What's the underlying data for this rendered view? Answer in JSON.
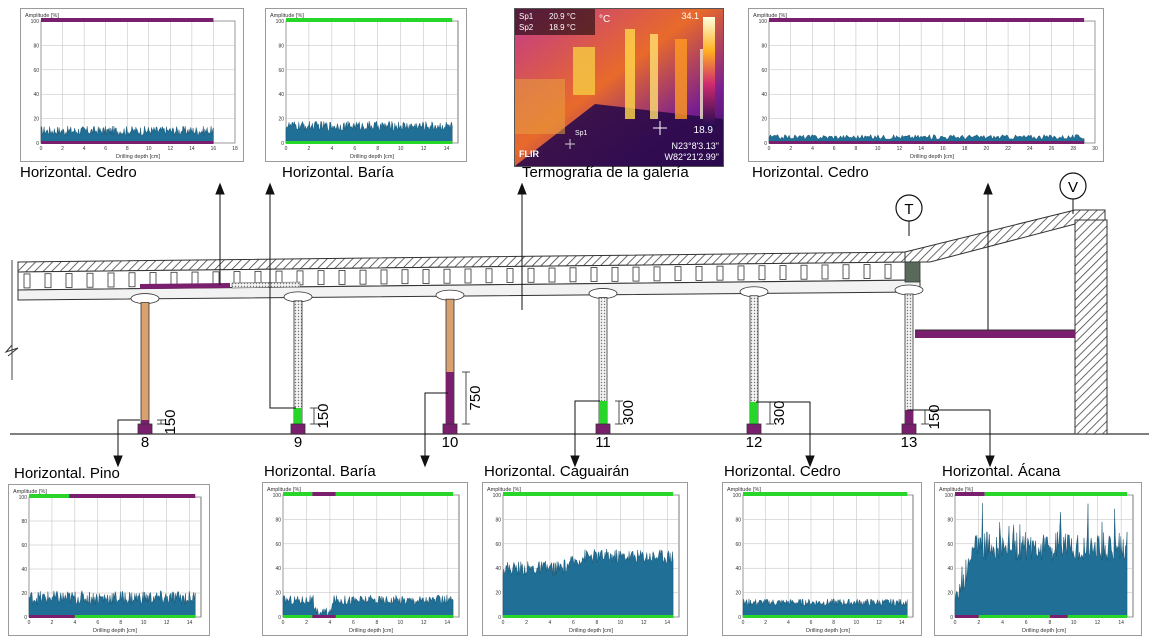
{
  "colors": {
    "signal": "#1f6f96",
    "sound": "#28d62a",
    "decay": "#7a1f6e",
    "wood": "#d9a070",
    "hatch": "#555555"
  },
  "captions": {
    "top_left": "Horizontal. Cedro",
    "top_baria": "Horizontal. Baría",
    "thermo": "Termografía de la galería",
    "top_right": "Horizontal. Cedro",
    "bot_pino": "Horizontal. Pino",
    "bot_baria": "Horizontal. Baría",
    "bot_caguairan": "Horizontal. Caguairán",
    "bot_cedro": "Horizontal. Cedro",
    "bot_acana": "Horizontal. Ácana"
  },
  "thermography": {
    "sp1_label": "Sp1",
    "sp1_value": "20.9 °C",
    "sp2_label": "Sp2",
    "sp2_value": "18.9 °C",
    "unit": "°C",
    "scale_max": "34.1",
    "scale_min": "18.9",
    "coord_n": "N23°8'3.13\"",
    "coord_w": "W82°21'2.99\"",
    "brand": "FLIR",
    "spot": "Sp1"
  },
  "structure": {
    "columns": [
      "8",
      "9",
      "10",
      "11",
      "12",
      "13"
    ],
    "dims": [
      "150",
      "150",
      "750",
      "300",
      "300",
      "150"
    ],
    "markers": [
      "T",
      "V"
    ]
  },
  "chart_data": [
    {
      "id": "top_left",
      "type": "area",
      "ylabel": "Amplitude [%]",
      "xlabel": "Drilling depth [cm]",
      "ylim": [
        0,
        100
      ],
      "xlim": [
        0,
        18
      ],
      "xticks": [
        "0",
        "2",
        "4",
        "6",
        "8",
        "10",
        "12",
        "14",
        "16",
        "18"
      ],
      "yticks": [
        "0",
        "20",
        "40",
        "60",
        "80",
        "100"
      ],
      "baseline": 10,
      "noise": 4,
      "end": 16,
      "bar_segments": [
        {
          "from": 0,
          "to": 16,
          "color": "decay"
        }
      ],
      "bottom_segments": [
        {
          "from": 0,
          "to": 16,
          "color": "decay"
        }
      ]
    },
    {
      "id": "top_baria",
      "type": "area",
      "ylabel": "Amplitude [%]",
      "xlabel": "Drilling depth [cm]",
      "ylim": [
        0,
        100
      ],
      "xlim": [
        0,
        15
      ],
      "xticks": [
        "0",
        "2",
        "4",
        "6",
        "8",
        "10",
        "12",
        "14"
      ],
      "yticks": [
        "0",
        "20",
        "40",
        "60",
        "80",
        "100"
      ],
      "baseline": 14,
      "noise": 4,
      "end": 14.5,
      "bar_segments": [
        {
          "from": 0,
          "to": 14.5,
          "color": "sound"
        }
      ],
      "bottom_segments": [
        {
          "from": 0,
          "to": 14.5,
          "color": "sound"
        }
      ]
    },
    {
      "id": "top_right",
      "type": "area",
      "ylabel": "Amplitude [%]",
      "xlabel": "Drilling depth [cm]",
      "ylim": [
        0,
        100
      ],
      "xlim": [
        0,
        30
      ],
      "xticks": [
        "0",
        "2",
        "4",
        "6",
        "8",
        "10",
        "12",
        "14",
        "16",
        "18",
        "20",
        "22",
        "24",
        "26",
        "28",
        "30"
      ],
      "yticks": [
        "0",
        "20",
        "40",
        "60",
        "80",
        "100"
      ],
      "baseline": 5,
      "noise": 2,
      "end": 29,
      "bar_segments": [
        {
          "from": 0,
          "to": 29,
          "color": "decay"
        }
      ],
      "bottom_segments": [
        {
          "from": 0,
          "to": 29,
          "color": "decay"
        }
      ]
    },
    {
      "id": "bot_pino",
      "type": "area",
      "ylabel": "Amplitude [%]",
      "xlabel": "Drilling depth [cm]",
      "ylim": [
        0,
        100
      ],
      "xlim": [
        0,
        15
      ],
      "xticks": [
        "0",
        "2",
        "4",
        "6",
        "8",
        "10",
        "12",
        "14"
      ],
      "yticks": [
        "0",
        "20",
        "40",
        "60",
        "80",
        "100"
      ],
      "baseline": 16,
      "noise": 6,
      "end": 14.5,
      "bar_segments": [
        {
          "from": 0,
          "to": 3.5,
          "color": "sound"
        },
        {
          "from": 3.5,
          "to": 14.5,
          "color": "decay"
        }
      ],
      "bottom_segments": [
        {
          "from": 0,
          "to": 4,
          "color": "decay"
        },
        {
          "from": 4,
          "to": 14.5,
          "color": "sound"
        }
      ]
    },
    {
      "id": "bot_baria",
      "type": "area",
      "ylabel": "Amplitude [%]",
      "xlabel": "Drilling depth [cm]",
      "ylim": [
        0,
        100
      ],
      "xlim": [
        0,
        15
      ],
      "xticks": [
        "0",
        "2",
        "4",
        "6",
        "8",
        "10",
        "12",
        "14"
      ],
      "yticks": [
        "0",
        "20",
        "40",
        "60",
        "80",
        "100"
      ],
      "baseline": 14,
      "noise": 4,
      "end": 14.5,
      "dip": [
        2.6,
        4.2,
        4
      ],
      "bar_segments": [
        {
          "from": 0,
          "to": 2.5,
          "color": "sound"
        },
        {
          "from": 2.5,
          "to": 4.5,
          "color": "decay"
        },
        {
          "from": 4.5,
          "to": 14.5,
          "color": "sound"
        }
      ],
      "bottom_segments": [
        {
          "from": 0,
          "to": 2.5,
          "color": "sound"
        },
        {
          "from": 2.5,
          "to": 4.5,
          "color": "decay"
        },
        {
          "from": 4.5,
          "to": 14.5,
          "color": "sound"
        }
      ]
    },
    {
      "id": "bot_caguairan",
      "type": "area",
      "ylabel": "Amplitude [%]",
      "xlabel": "Drilling depth [cm]",
      "ylim": [
        0,
        100
      ],
      "xlim": [
        0,
        15
      ],
      "xticks": [
        "0",
        "2",
        "4",
        "6",
        "8",
        "10",
        "12",
        "14"
      ],
      "yticks": [
        "0",
        "20",
        "40",
        "60",
        "80",
        "100"
      ],
      "baseline": 40,
      "noise": 6,
      "end": 14.5,
      "rise": [
        5,
        50
      ],
      "bar_segments": [
        {
          "from": 0,
          "to": 14.5,
          "color": "sound"
        }
      ],
      "bottom_segments": [
        {
          "from": 0,
          "to": 14.5,
          "color": "sound"
        }
      ]
    },
    {
      "id": "bot_cedro",
      "type": "area",
      "ylabel": "Amplitude [%]",
      "xlabel": "Drilling depth [cm]",
      "ylim": [
        0,
        100
      ],
      "xlim": [
        0,
        15
      ],
      "xticks": [
        "0",
        "2",
        "4",
        "6",
        "8",
        "10",
        "12",
        "14"
      ],
      "yticks": [
        "0",
        "20",
        "40",
        "60",
        "80",
        "100"
      ],
      "baseline": 12,
      "noise": 3,
      "end": 14.5,
      "bar_segments": [
        {
          "from": 0,
          "to": 14.5,
          "color": "sound"
        }
      ],
      "bottom_segments": [
        {
          "from": 0,
          "to": 14.5,
          "color": "sound"
        }
      ]
    },
    {
      "id": "bot_acana",
      "type": "area",
      "ylabel": "Amplitude [%]",
      "xlabel": "Drilling depth [cm]",
      "ylim": [
        0,
        100
      ],
      "xlim": [
        0,
        15
      ],
      "xticks": [
        "0",
        "2",
        "4",
        "6",
        "8",
        "10",
        "12",
        "14"
      ],
      "yticks": [
        "0",
        "20",
        "40",
        "60",
        "80",
        "100"
      ],
      "baseline": 58,
      "noise": 12,
      "end": 14.5,
      "startlow": true,
      "bar_segments": [
        {
          "from": 0,
          "to": 2.5,
          "color": "decay"
        },
        {
          "from": 2.5,
          "to": 14.5,
          "color": "sound"
        }
      ],
      "bottom_segments": [
        {
          "from": 0,
          "to": 2,
          "color": "decay"
        },
        {
          "from": 2,
          "to": 8,
          "color": "sound"
        },
        {
          "from": 8,
          "to": 9.5,
          "color": "decay"
        },
        {
          "from": 9.5,
          "to": 14.5,
          "color": "sound"
        }
      ]
    }
  ]
}
